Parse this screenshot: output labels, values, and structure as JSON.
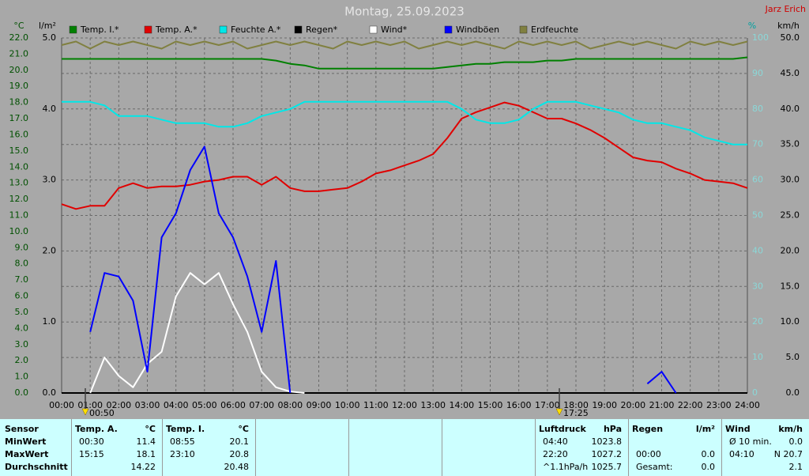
{
  "chart_data": {
    "type": "line",
    "title": "Montag, 25.09.2023",
    "subtitle": "Jarz Erich",
    "ylabel": "°C",
    "y2label": "l/m²",
    "y3label": "%",
    "y4label": "km/h",
    "x": [
      0,
      0.5,
      1,
      1.5,
      2,
      2.5,
      3,
      3.5,
      4,
      4.5,
      5,
      5.5,
      6,
      6.5,
      7,
      7.5,
      8,
      8.5,
      9,
      9.5,
      10,
      10.5,
      11,
      11.5,
      12,
      12.5,
      13,
      13.5,
      14,
      14.5,
      15,
      15.5,
      16,
      16.5,
      17,
      17.5,
      18,
      18.5,
      19,
      19.5,
      20,
      20.5,
      21,
      21.5,
      22,
      22.5,
      23,
      23.5,
      24
    ],
    "xlim": [
      0,
      24
    ],
    "xticks": [
      {
        "value": 0,
        "label": "00:00"
      },
      {
        "value": 1,
        "label": "01:00"
      },
      {
        "value": 2,
        "label": "02:00"
      },
      {
        "value": 3,
        "label": "03:00"
      },
      {
        "value": 4,
        "label": "04:00"
      },
      {
        "value": 5,
        "label": "05:00"
      },
      {
        "value": 6,
        "label": "06:00"
      },
      {
        "value": 7,
        "label": "07:00"
      },
      {
        "value": 8,
        "label": "08:00"
      },
      {
        "value": 9,
        "label": "09:00"
      },
      {
        "value": 10,
        "label": "10:00"
      },
      {
        "value": 11,
        "label": "11:00"
      },
      {
        "value": 12,
        "label": "12:00"
      },
      {
        "value": 13,
        "label": "13:00"
      },
      {
        "value": 14,
        "label": "14:00"
      },
      {
        "value": 15,
        "label": "15:00"
      },
      {
        "value": 16,
        "label": "16:00"
      },
      {
        "value": 17,
        "label": "17:00"
      },
      {
        "value": 18,
        "label": "18:00"
      },
      {
        "value": 19,
        "label": "19:00"
      },
      {
        "value": 20,
        "label": "20:00"
      },
      {
        "value": 21,
        "label": "21:00"
      },
      {
        "value": 22,
        "label": "22:00"
      },
      {
        "value": 23,
        "label": "23:00"
      },
      {
        "value": 24,
        "label": "24:00"
      }
    ],
    "ylim": [
      0,
      22
    ],
    "yticks": [
      {
        "value": 0,
        "label": "0.0"
      },
      {
        "value": 1,
        "label": "1.0"
      },
      {
        "value": 2,
        "label": "2.0"
      },
      {
        "value": 3,
        "label": "3.0"
      },
      {
        "value": 4,
        "label": "4.0"
      },
      {
        "value": 5,
        "label": "5.0"
      },
      {
        "value": 6,
        "label": "6.0"
      },
      {
        "value": 7,
        "label": "7.0"
      },
      {
        "value": 8,
        "label": "8.0"
      },
      {
        "value": 9,
        "label": "9.0"
      },
      {
        "value": 10,
        "label": "10.0"
      },
      {
        "value": 11,
        "label": "11.0"
      },
      {
        "value": 12,
        "label": "12.0"
      },
      {
        "value": 13,
        "label": "13.0"
      },
      {
        "value": 14,
        "label": "14.0"
      },
      {
        "value": 15,
        "label": "15.0"
      },
      {
        "value": 16,
        "label": "16.0"
      },
      {
        "value": 17,
        "label": "17.0"
      },
      {
        "value": 18,
        "label": "18.0"
      },
      {
        "value": 19,
        "label": "19.0"
      },
      {
        "value": 20,
        "label": "20.0"
      },
      {
        "value": 21,
        "label": "21.0"
      },
      {
        "value": 22,
        "label": "22.0"
      }
    ],
    "y2lim": [
      0,
      5
    ],
    "y2ticks": [
      {
        "value": 0,
        "label": "0.0"
      },
      {
        "value": 1,
        "label": "1.0"
      },
      {
        "value": 2,
        "label": "2.0"
      },
      {
        "value": 3,
        "label": "3.0"
      },
      {
        "value": 4,
        "label": "4.0"
      },
      {
        "value": 5,
        "label": "5.0"
      }
    ],
    "y3lim": [
      0,
      100
    ],
    "y3ticks": [
      0,
      10,
      20,
      30,
      40,
      50,
      60,
      70,
      80,
      90,
      100
    ],
    "y4lim": [
      0,
      50
    ],
    "y4ticks": [
      {
        "value": 0,
        "label": "0.0"
      },
      {
        "value": 5,
        "label": "5.0"
      },
      {
        "value": 10,
        "label": "10.0"
      },
      {
        "value": 15,
        "label": "15.0"
      },
      {
        "value": 20,
        "label": "20.0"
      },
      {
        "value": 25,
        "label": "25.0"
      },
      {
        "value": 30,
        "label": "30.0"
      },
      {
        "value": 35,
        "label": "35.0"
      },
      {
        "value": 40,
        "label": "40.0"
      },
      {
        "value": 45,
        "label": "45.0"
      },
      {
        "value": 50,
        "label": "50.0"
      }
    ],
    "grid": true,
    "series": [
      {
        "name": "Temp. I.*",
        "color": "#008000",
        "axis": "y",
        "values": [
          20.7,
          20.7,
          20.7,
          20.7,
          20.7,
          20.7,
          20.7,
          20.7,
          20.7,
          20.7,
          20.7,
          20.7,
          20.7,
          20.7,
          20.7,
          20.6,
          20.4,
          20.3,
          20.1,
          20.1,
          20.1,
          20.1,
          20.1,
          20.1,
          20.1,
          20.1,
          20.1,
          20.2,
          20.3,
          20.4,
          20.4,
          20.5,
          20.5,
          20.5,
          20.6,
          20.6,
          20.7,
          20.7,
          20.7,
          20.7,
          20.7,
          20.7,
          20.7,
          20.7,
          20.7,
          20.7,
          20.7,
          20.7,
          20.8
        ]
      },
      {
        "name": "Temp. A.*",
        "color": "#e00000",
        "axis": "y",
        "values": [
          11.7,
          11.4,
          11.6,
          11.6,
          12.7,
          13.0,
          12.7,
          12.8,
          12.8,
          12.9,
          13.1,
          13.2,
          13.4,
          13.4,
          12.9,
          13.4,
          12.7,
          12.5,
          12.5,
          12.6,
          12.7,
          13.1,
          13.6,
          13.8,
          14.1,
          14.4,
          14.8,
          15.8,
          17.0,
          17.4,
          17.7,
          18.0,
          17.8,
          17.4,
          17.0,
          17.0,
          16.7,
          16.3,
          15.8,
          15.2,
          14.6,
          14.4,
          14.3,
          13.9,
          13.6,
          13.2,
          13.1,
          13.0,
          12.7
        ]
      },
      {
        "name": "Feuchte A.*",
        "color": "#00e8e8",
        "axis": "y3",
        "values": [
          82,
          82,
          82,
          81,
          78,
          78,
          78,
          77,
          76,
          76,
          76,
          75,
          75,
          76,
          78,
          79,
          80,
          82,
          82,
          82,
          82,
          82,
          82,
          82,
          82,
          82,
          82,
          82,
          80,
          77,
          76,
          76,
          77,
          80,
          82,
          82,
          82,
          81,
          80,
          79,
          77,
          76,
          76,
          75,
          74,
          72,
          71,
          70,
          70
        ]
      },
      {
        "name": "Regen*",
        "color": "#000000",
        "axis": "y2",
        "values": [
          0,
          0,
          0,
          0,
          0,
          0,
          0,
          0,
          0,
          0,
          0,
          0,
          0,
          0,
          0,
          0,
          0,
          0,
          0,
          0,
          0,
          0,
          0,
          0,
          0,
          0,
          0,
          0,
          0,
          0,
          0,
          0,
          0,
          0,
          0,
          0,
          0,
          0,
          0,
          0,
          0,
          0,
          0,
          0,
          0,
          0,
          0,
          0,
          0
        ]
      },
      {
        "name": "Wind*",
        "color": "#ffffff",
        "axis": "y4",
        "values": [
          null,
          null,
          0,
          5.0,
          2.4,
          0.8,
          4.1,
          5.8,
          13.6,
          16.9,
          15.3,
          16.9,
          12.5,
          8.6,
          3.0,
          0.8,
          0.2,
          0,
          null,
          null,
          null,
          null,
          null,
          null,
          null,
          null,
          null,
          null,
          null,
          null,
          null,
          null,
          null,
          null,
          null,
          null,
          null,
          null,
          null,
          null,
          null,
          null,
          null,
          null,
          null,
          null,
          null,
          null,
          null
        ]
      },
      {
        "name": "Windböen",
        "color": "#0000ff",
        "axis": "y4",
        "values": [
          null,
          null,
          8.6,
          16.9,
          16.4,
          13.0,
          3.0,
          21.9,
          25.3,
          31.4,
          34.7,
          25.3,
          21.9,
          16.4,
          8.6,
          18.6,
          0,
          null,
          null,
          null,
          null,
          null,
          null,
          null,
          null,
          null,
          null,
          null,
          null,
          null,
          null,
          null,
          null,
          null,
          null,
          null,
          null,
          null,
          null,
          null,
          null,
          1.3,
          3.0,
          0,
          null,
          null,
          null,
          null,
          null
        ]
      },
      {
        "name": "Erdfeuchte",
        "color": "#808040",
        "axis": "y3",
        "values": [
          98,
          99,
          97,
          99,
          98,
          99,
          98,
          97,
          99,
          98,
          99,
          98,
          99,
          97,
          98,
          99,
          98,
          99,
          98,
          97,
          99,
          98,
          99,
          98,
          99,
          97,
          98,
          99,
          98,
          99,
          98,
          97,
          99,
          98,
          99,
          98,
          99,
          97,
          98,
          99,
          98,
          99,
          98,
          97,
          99,
          98,
          99,
          98,
          99
        ]
      }
    ],
    "annotations": [
      {
        "x": 0.83,
        "label": "00:50"
      },
      {
        "x": 17.42,
        "label": "17:25"
      }
    ]
  },
  "table": {
    "row_labels": [
      "Sensor",
      "MinWert",
      "MaxWert",
      "Durchschnitt"
    ],
    "groups": [
      {
        "name": "Temp. A.",
        "unit": "°C",
        "rows": [
          {
            "time": "00:30",
            "value": "11.4"
          },
          {
            "time": "15:15",
            "value": "18.1"
          },
          {
            "value": "14.22"
          }
        ]
      },
      {
        "name": "Temp. I.",
        "unit": "°C",
        "rows": [
          {
            "time": "08:55",
            "value": "20.1"
          },
          {
            "time": "23:10",
            "value": "20.8"
          },
          {
            "value": "20.48"
          }
        ]
      },
      {
        "name": "Luftdruck",
        "unit": "hPa",
        "rows": [
          {
            "time": "04:40",
            "value": "1023.8"
          },
          {
            "time": "22:20",
            "value": "1027.2"
          },
          {
            "time": "^1.1hPa/h",
            "value": "1025.7"
          }
        ]
      },
      {
        "name": "Regen",
        "unit": "l/m²",
        "rows": [
          null,
          {
            "time": "00:00",
            "value": "0.0"
          },
          {
            "time": "Gesamt:",
            "value": "0.0"
          }
        ]
      },
      {
        "name": "Wind",
        "unit": "km/h",
        "rows": [
          {
            "time": "Ø 10 min.",
            "value": "0.0"
          },
          {
            "time": "04:10",
            "value": "N 20.7"
          },
          {
            "value": "2.1"
          }
        ]
      }
    ]
  }
}
